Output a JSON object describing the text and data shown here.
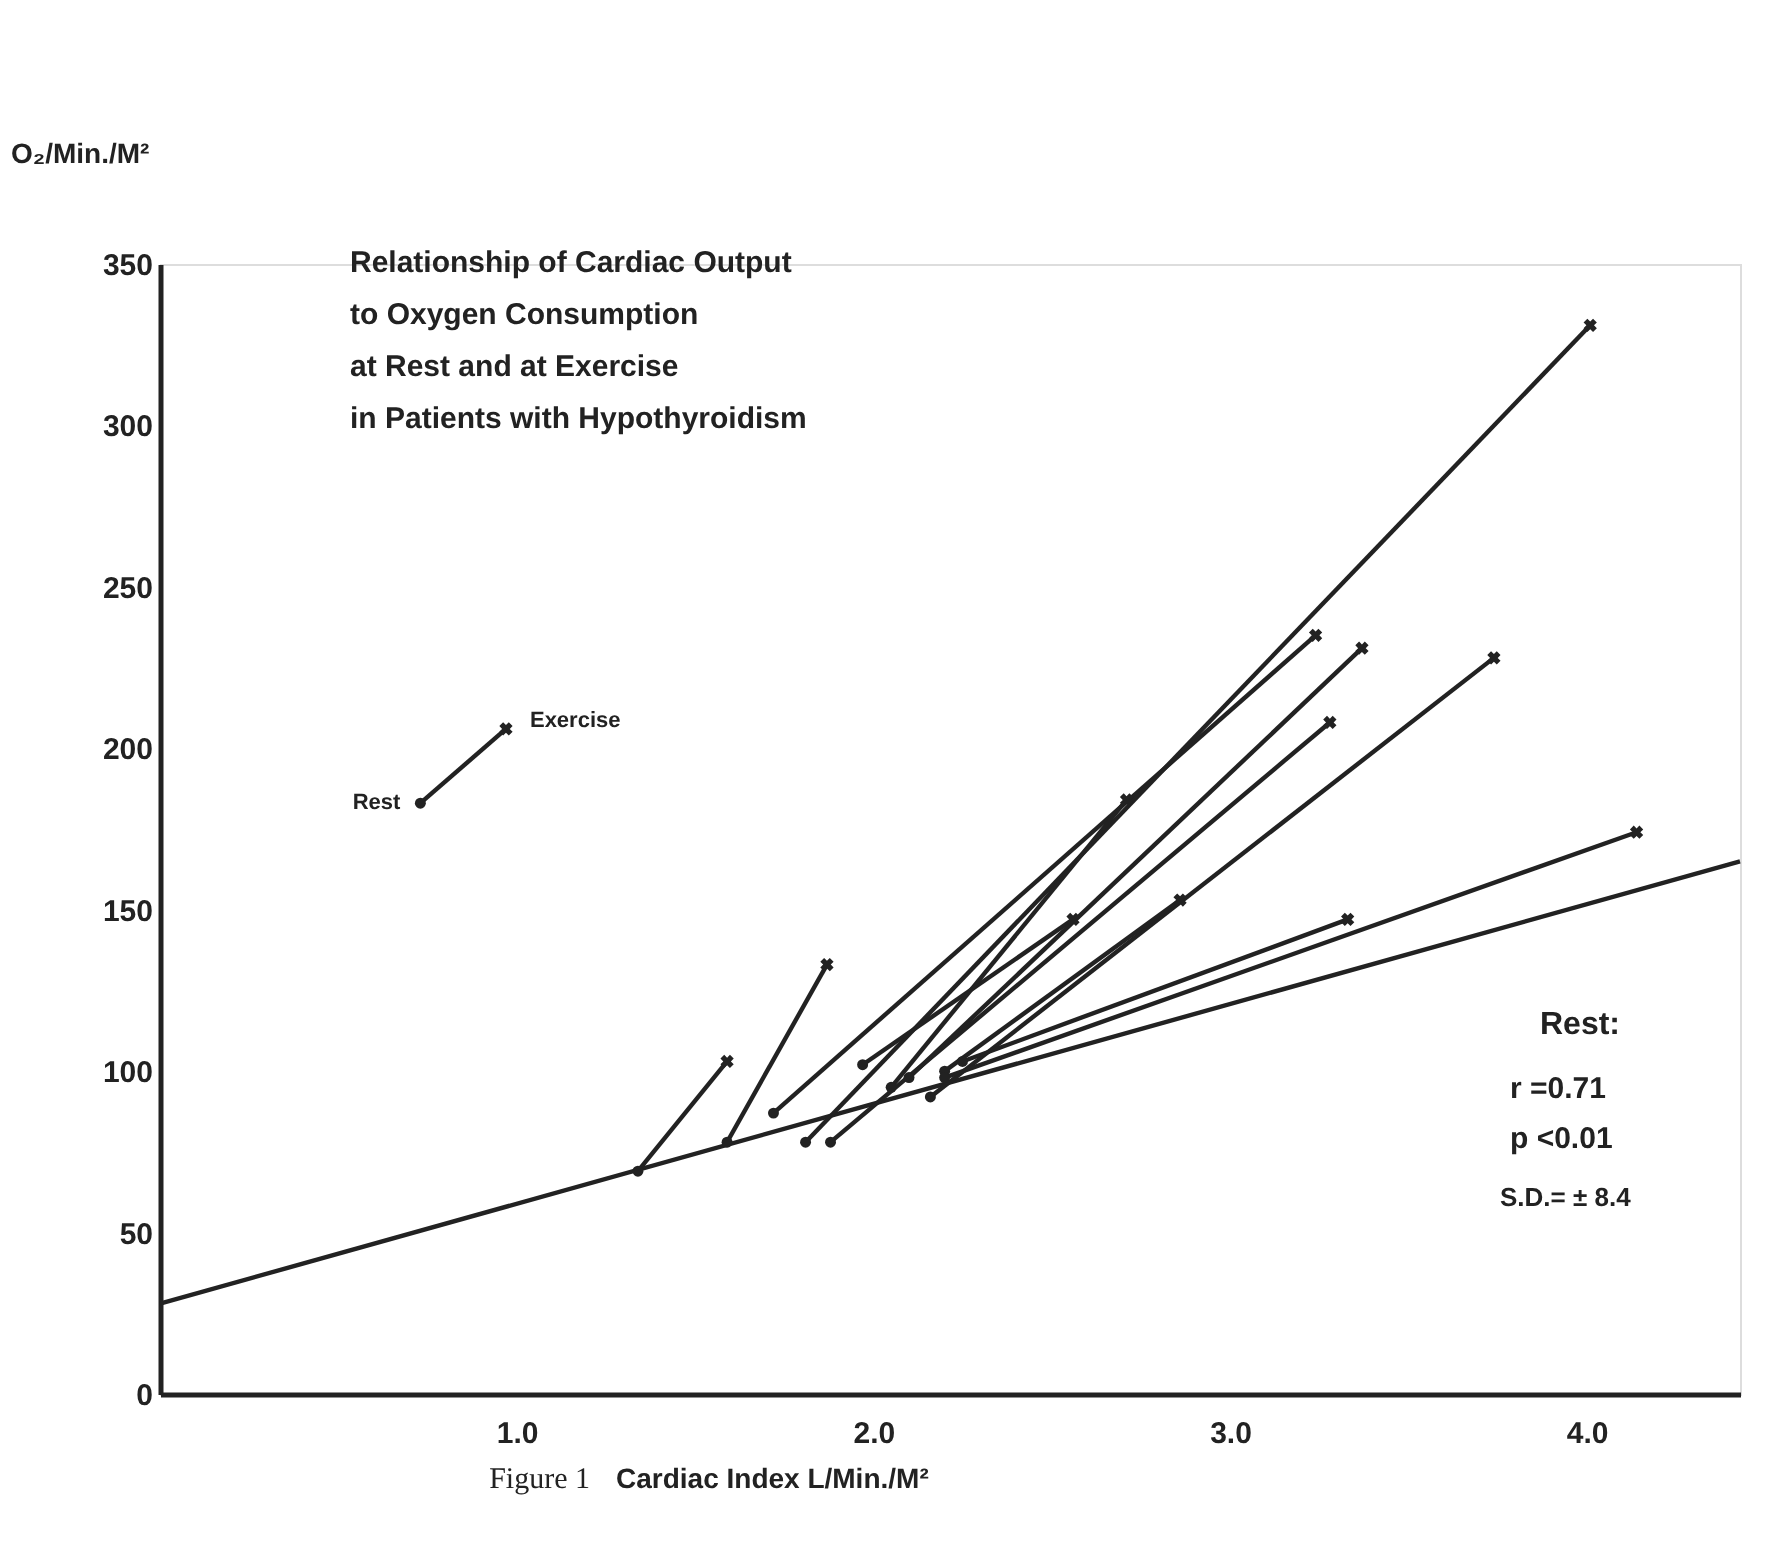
{
  "chart_data": {
    "type": "line",
    "title": "Relationship  of  Cardiac  Output\nto  Oxygen  Consumption\nat  Rest  and  at  Exercise\nin  Patients  with  Hypothyroidism",
    "xlabel": "Cardiac  Index    L/Min./M²",
    "ylabel": "O₂/Min./M²",
    "xlim": [
      0,
      4.43
    ],
    "xticks": [
      {
        "value": 1,
        "label": "1.0"
      },
      {
        "value": 2,
        "label": "2.0"
      },
      {
        "value": 3,
        "label": "3.0"
      },
      {
        "value": 4,
        "label": "4.0"
      }
    ],
    "ylim": [
      0,
      350
    ],
    "yticks": [
      0,
      50,
      100,
      150,
      200,
      250,
      300,
      350
    ],
    "grid": false,
    "line_style": "solid",
    "series": [
      {
        "color": "#222222",
        "marker": "none",
        "x": [
          0,
          4.43
        ],
        "values": [
          28,
          165
        ]
      },
      {
        "color": "#222222",
        "marker": "none",
        "x": [
          1.34,
          1.59
        ],
        "values": [
          69,
          103
        ]
      },
      {
        "color": "#222222",
        "marker": "none",
        "x": [
          1.59,
          1.87
        ],
        "values": [
          78,
          133
        ]
      },
      {
        "color": "#222222",
        "marker": "none",
        "x": [
          1.72,
          3.24
        ],
        "values": [
          87,
          235
        ]
      },
      {
        "color": "#222222",
        "marker": "none",
        "x": [
          1.81,
          4.01
        ],
        "values": [
          78,
          331
        ]
      },
      {
        "color": "#222222",
        "marker": "none",
        "x": [
          1.88,
          3.28
        ],
        "values": [
          78,
          208
        ]
      },
      {
        "color": "#222222",
        "marker": "none",
        "x": [
          1.97,
          2.56
        ],
        "values": [
          102,
          147
        ]
      },
      {
        "color": "#222222",
        "marker": "none",
        "x": [
          2.16,
          3.74
        ],
        "values": [
          92,
          228
        ]
      },
      {
        "color": "#222222",
        "marker": "none",
        "x": [
          2.05,
          2.71
        ],
        "values": [
          95,
          184
        ]
      },
      {
        "color": "#222222",
        "marker": "none",
        "x": [
          2.1,
          3.37
        ],
        "values": [
          98,
          231
        ]
      },
      {
        "color": "#222222",
        "marker": "none",
        "x": [
          2.2,
          2.86
        ],
        "values": [
          100,
          153
        ]
      },
      {
        "color": "#222222",
        "marker": "none",
        "x": [
          2.25,
          3.33
        ],
        "values": [
          103,
          147
        ]
      },
      {
        "color": "#222222",
        "marker": "none",
        "x": [
          2.2,
          4.14
        ],
        "values": [
          98,
          174
        ]
      },
      {
        "color": "#222222",
        "marker": "none",
        "x": [
          0.73,
          0.97
        ],
        "values": [
          183,
          206
        ]
      },
      {
        "type": "scatter",
        "color": "#222222",
        "marker": "circle",
        "x": [
          1.34,
          1.59,
          1.72,
          1.81,
          1.88,
          1.97,
          2.16,
          2.05,
          2.1,
          2.2,
          2.25,
          2.2,
          0.73
        ],
        "values": [
          69,
          78,
          87,
          78,
          78,
          102,
          92,
          95,
          98,
          100,
          103,
          98,
          183
        ]
      },
      {
        "type": "scatter",
        "color": "#222222",
        "marker": "cross",
        "x": [
          1.59,
          1.87,
          3.24,
          4.01,
          3.28,
          2.56,
          3.74,
          2.71,
          3.37,
          2.86,
          3.33,
          4.14,
          0.97
        ],
        "values": [
          103,
          133,
          235,
          331,
          208,
          147,
          228,
          184,
          231,
          153,
          147,
          174,
          206
        ]
      }
    ],
    "annotations": [
      "Figure 1",
      "Rest:",
      "r  =0.71",
      "p  <0.01",
      "S.D.= ± 8.4",
      {
        "text": "Rest",
        "x": 0.73,
        "y": 183
      },
      {
        "text": "Exercise",
        "x": 0.97,
        "y": 206
      }
    ]
  }
}
